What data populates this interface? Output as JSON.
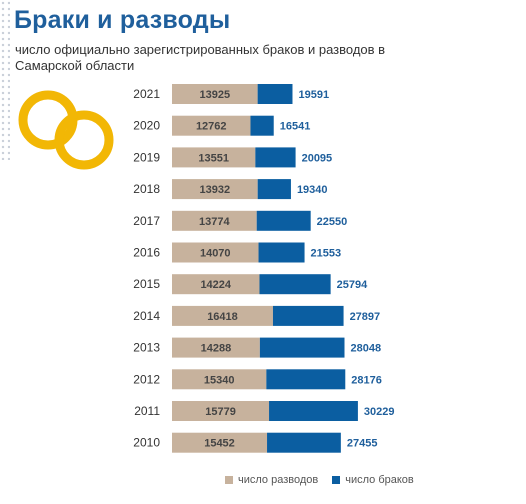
{
  "header": {
    "title": "Браки и разводы",
    "subtitle": "число официально зарегистрированных браков и разводов в Самарской области"
  },
  "decor": {
    "icon": "wedding-rings-icon",
    "color": "#f2b705"
  },
  "colors": {
    "divorces": "#c7b29d",
    "marriages": "#0b5ea1",
    "year_label": "#333333",
    "divorce_label": "#444444",
    "marriage_label": "#1f5f9c"
  },
  "chart_data": {
    "type": "bar",
    "orientation": "horizontal",
    "stacked": true,
    "categories": [
      "2021",
      "2020",
      "2019",
      "2018",
      "2017",
      "2016",
      "2015",
      "2014",
      "2013",
      "2012",
      "2011",
      "2010"
    ],
    "series": [
      {
        "name": "число разводов",
        "values": [
          13925,
          12762,
          13551,
          13932,
          13774,
          14070,
          14224,
          16418,
          14288,
          15340,
          15779,
          15452
        ]
      },
      {
        "name": "число браков",
        "values": [
          19591,
          16541,
          20095,
          19340,
          22550,
          21553,
          25794,
          27897,
          28048,
          28176,
          30229,
          27455
        ]
      }
    ],
    "legend_position": "bottom",
    "grid": false
  },
  "legend": {
    "divorces_label": "число разводов",
    "marriages_label": "число браков"
  }
}
